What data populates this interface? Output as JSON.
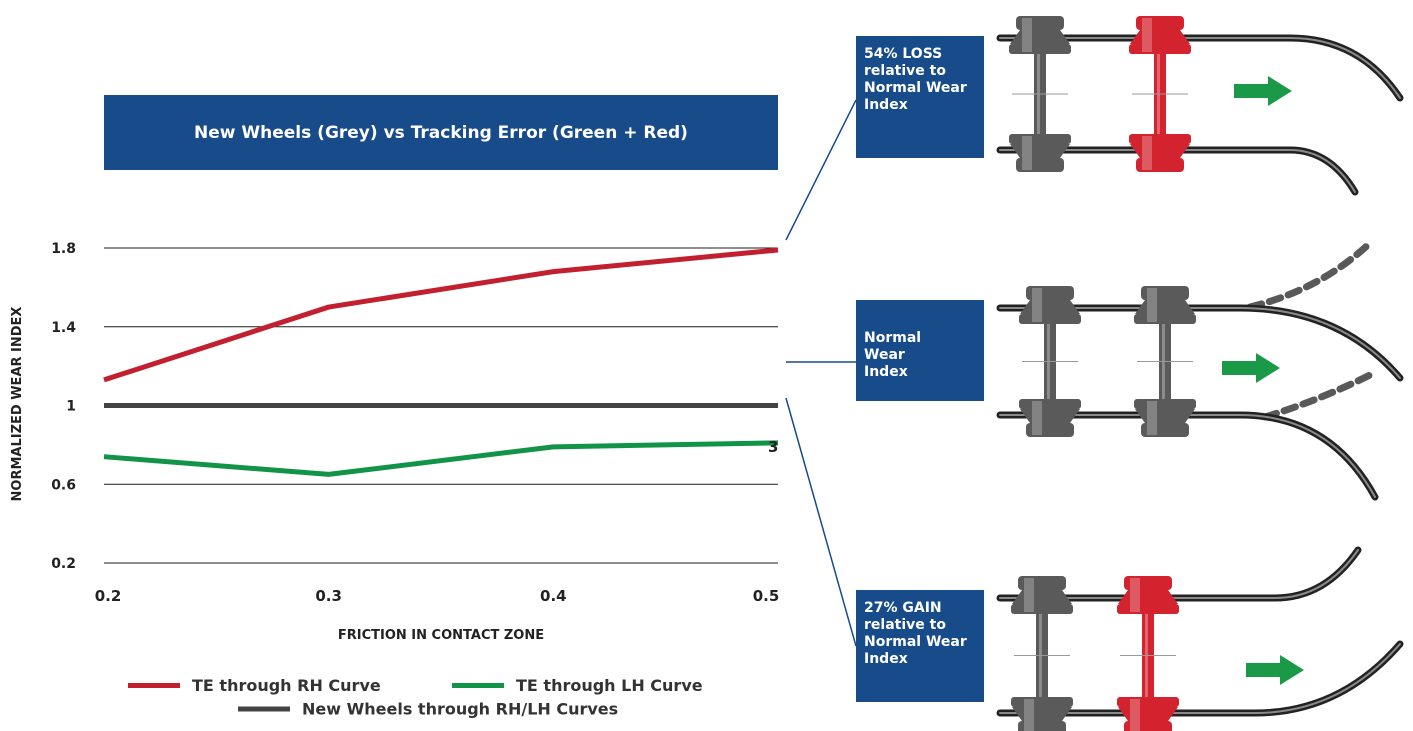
{
  "chart_data": {
    "type": "line",
    "title": "New Wheels (Grey) vs Tracking Error (Green + Red)",
    "xlabel": "FRICTION IN CONTACT ZONE",
    "ylabel": "NORMALIZED WEAR INDEX",
    "x": [
      0.2,
      0.3,
      0.4,
      0.5
    ],
    "x_tick_labels": [
      "0.2",
      "0.3",
      "0.4",
      "0.5"
    ],
    "y_ticks": [
      0.2,
      0.6,
      1,
      1.4,
      1.8
    ],
    "y_tick_labels": [
      "0.2",
      "0.6",
      "1",
      "1.4",
      "1.8"
    ],
    "ylim": [
      0.2,
      1.8
    ],
    "grid": true,
    "legend_position": "bottom",
    "series": [
      {
        "name": "TE through RH Curve",
        "color": "#c3202f",
        "values": [
          1.13,
          1.5,
          1.68,
          1.79
        ]
      },
      {
        "name": "TE through LH Curve",
        "color": "#119447",
        "values": [
          0.74,
          0.65,
          0.79,
          0.81
        ]
      },
      {
        "name": "New Wheels through RH/LH Curves",
        "color": "#444444",
        "values": [
          1.0,
          1.0,
          1.0,
          1.0
        ]
      }
    ],
    "annotations": [
      "3"
    ]
  },
  "callouts": {
    "top": [
      "54% LOSS",
      "relative to",
      "Normal Wear",
      "Index"
    ],
    "middle": [
      "Normal",
      "Wear",
      "Index"
    ],
    "bottom": [
      "27% GAIN",
      "relative to",
      "Normal Wear",
      "Index"
    ]
  },
  "colors": {
    "box_blue": "#184b8a",
    "rail": "#3a3a3a",
    "wheel_grey": "#5a5a5a",
    "wheel_red": "#d3232f",
    "arrow_green": "#1a9a48"
  },
  "icons": [
    "wheelset-diagram-rh-curve",
    "wheelset-diagram-normal",
    "wheelset-diagram-lh-curve",
    "arrow-right-icon"
  ]
}
